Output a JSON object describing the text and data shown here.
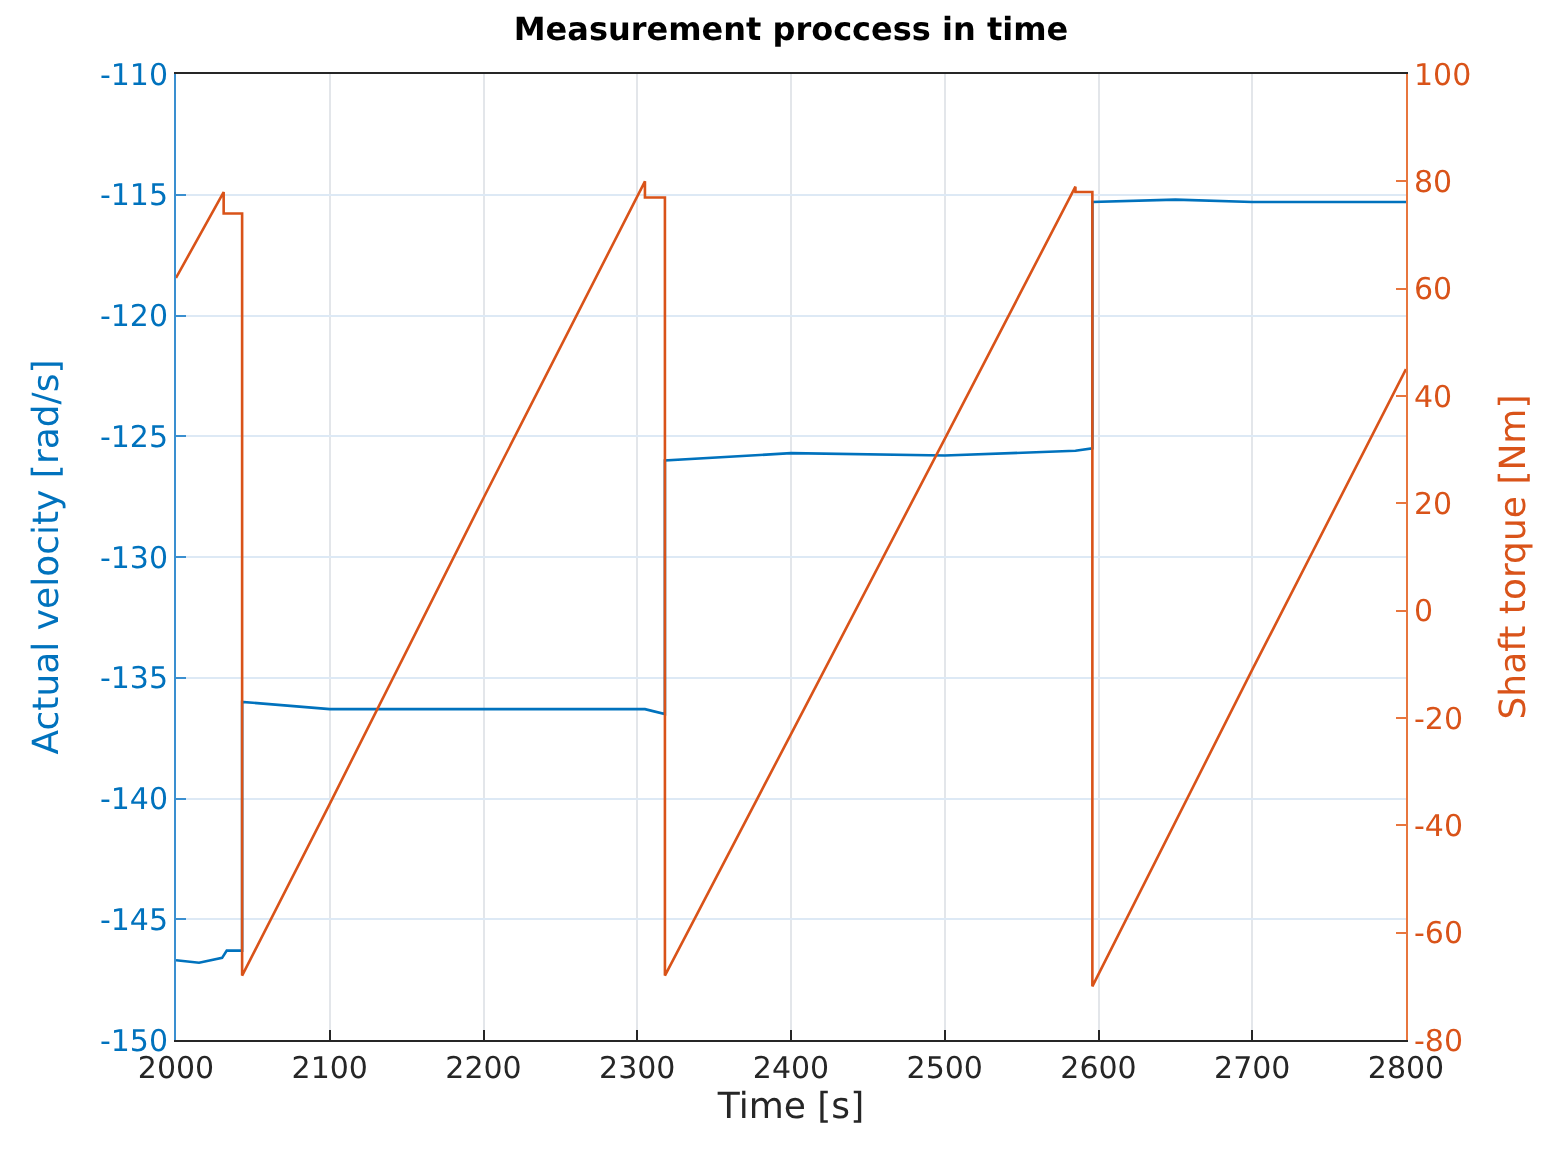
{
  "chart_data": {
    "type": "line",
    "title": "Measurement proccess in time",
    "xlabel": "Time [s]",
    "ylabel": "Actual velocity [rad/s]",
    "y2label": "Shaft torque [Nm]",
    "series": [
      {
        "color": "#0072bd",
        "x": [
          2000,
          2015,
          2030,
          2033,
          2043,
          2043,
          2100,
          2200,
          2305,
          2318,
          2318,
          2400,
          2500,
          2585,
          2596,
          2596,
          2650,
          2700,
          2800
        ],
        "values": [
          -146.7,
          -146.8,
          -146.6,
          -146.3,
          -146.3,
          -136.0,
          -136.3,
          -136.3,
          -136.3,
          -136.5,
          -126.0,
          -125.7,
          -125.8,
          -125.6,
          -125.5,
          -115.3,
          -115.2,
          -115.3,
          -115.3
        ]
      },
      {
        "color": "#d95319",
        "axis": "y2",
        "x": [
          2000,
          2031,
          2031,
          2043,
          2043,
          2100,
          2200,
          2305,
          2305,
          2318,
          2318,
          2400,
          2500,
          2585,
          2585,
          2596,
          2596,
          2700,
          2800
        ],
        "values": [
          62,
          78,
          74,
          74,
          -68,
          -36,
          21,
          80,
          77,
          77,
          -68,
          -23,
          32,
          79,
          78,
          78,
          -70,
          -11,
          45
        ]
      }
    ],
    "xlim": [
      2000,
      2800
    ],
    "xticks": [
      2000,
      2100,
      2200,
      2300,
      2400,
      2500,
      2600,
      2700,
      2800
    ],
    "ylim": [
      -150,
      -110
    ],
    "yticks": [
      -150,
      -145,
      -140,
      -135,
      -130,
      -125,
      -120,
      -115,
      -110
    ],
    "y2lim": [
      -80,
      100
    ],
    "y2ticks": [
      -80,
      -60,
      -40,
      -20,
      0,
      20,
      40,
      60,
      80,
      100
    ],
    "grid": true,
    "marker": "none",
    "line_style": "solid"
  }
}
